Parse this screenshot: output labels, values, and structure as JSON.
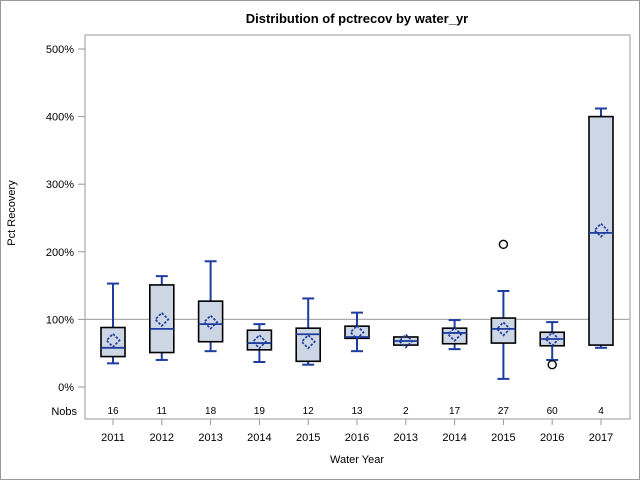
{
  "chart_data": {
    "type": "boxplot",
    "title": "Distribution of pctrecov by water_yr",
    "xlabel": "Water Year",
    "ylabel": "Pct Recovery",
    "nobs_label": "Nobs",
    "ylim": [
      0,
      500
    ],
    "ytick_format": "percent",
    "yticks": [
      {
        "value": 0,
        "label": "0%"
      },
      {
        "value": 100,
        "label": "100%"
      },
      {
        "value": 200,
        "label": "200%"
      },
      {
        "value": 300,
        "label": "300%"
      },
      {
        "value": 400,
        "label": "400%"
      },
      {
        "value": 500,
        "label": "500%"
      }
    ],
    "refline_y": 100,
    "grid": "refline-only",
    "legend": "none",
    "categories": [
      "2011",
      "2012",
      "2013",
      "2014",
      "2015",
      "2016",
      "2013",
      "2014",
      "2015",
      "2016",
      "2017"
    ],
    "nobs": [
      16,
      11,
      18,
      19,
      12,
      13,
      2,
      17,
      27,
      60,
      4
    ],
    "boxes": [
      {
        "year": "2011",
        "nobs": 16,
        "whisker_low": 35,
        "q1": 45,
        "median": 58,
        "q3": 88,
        "whisker_high": 153,
        "mean": 69,
        "outliers": []
      },
      {
        "year": "2012",
        "nobs": 11,
        "whisker_low": 40,
        "q1": 51,
        "median": 86,
        "q3": 151,
        "whisker_high": 164,
        "mean": 100,
        "outliers": []
      },
      {
        "year": "2013",
        "nobs": 18,
        "whisker_low": 53,
        "q1": 67,
        "median": 93,
        "q3": 127,
        "whisker_high": 186,
        "mean": 96,
        "outliers": []
      },
      {
        "year": "2014",
        "nobs": 19,
        "whisker_low": 37,
        "q1": 55,
        "median": 65,
        "q3": 84,
        "whisker_high": 93,
        "mean": 67,
        "outliers": []
      },
      {
        "year": "2015",
        "nobs": 12,
        "whisker_low": 33,
        "q1": 38,
        "median": 78,
        "q3": 87,
        "whisker_high": 131,
        "mean": 67,
        "outliers": []
      },
      {
        "year": "2016",
        "nobs": 13,
        "whisker_low": 53,
        "q1": 72,
        "median": 74,
        "q3": 90,
        "whisker_high": 110,
        "mean": 81,
        "outliers": []
      },
      {
        "year": "2013",
        "nobs": 2,
        "whisker_low": 62,
        "q1": 62,
        "median": 68,
        "q3": 74,
        "whisker_high": 74,
        "mean": 68,
        "outliers": []
      },
      {
        "year": "2014",
        "nobs": 17,
        "whisker_low": 56,
        "q1": 64,
        "median": 80,
        "q3": 87,
        "whisker_high": 99,
        "mean": 78,
        "outliers": []
      },
      {
        "year": "2015",
        "nobs": 27,
        "whisker_low": 12,
        "q1": 65,
        "median": 86,
        "q3": 102,
        "whisker_high": 142,
        "mean": 86,
        "outliers": [
          211
        ]
      },
      {
        "year": "2016",
        "nobs": 60,
        "whisker_low": 40,
        "q1": 61,
        "median": 71,
        "q3": 81,
        "whisker_high": 96,
        "mean": 71,
        "outliers": [
          33
        ]
      },
      {
        "year": "2017",
        "nobs": 4,
        "whisker_low": 58,
        "q1": 62,
        "median": 228,
        "q3": 400,
        "whisker_high": 412,
        "mean": 232,
        "outliers": []
      }
    ],
    "colors": {
      "box_fill": "#CDD6E5",
      "box_border": "#000000",
      "whisker_line": "#1F3D9E",
      "median_line": "#1F3D9E",
      "mean_marker": "#1F3D9E",
      "outlier_marker": "#000000",
      "frame": "#999999",
      "refline": "#ABABAB",
      "background": "#FFFFFF"
    }
  }
}
